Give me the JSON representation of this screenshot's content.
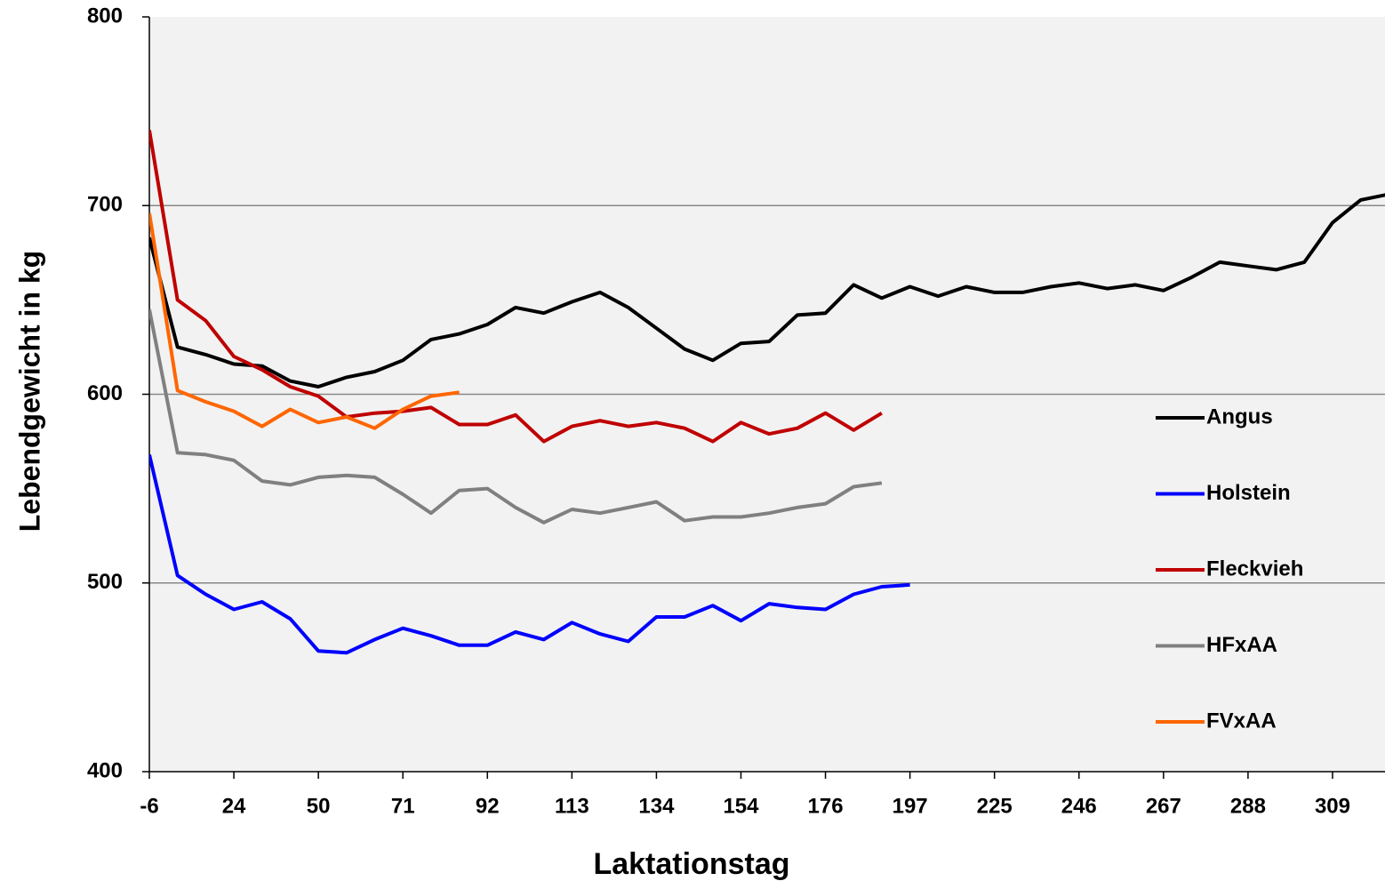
{
  "chart_data": {
    "type": "line",
    "xlabel": "Laktationstag",
    "ylabel": "Lebendgewicht in kg",
    "categories": [
      "-6",
      null,
      null,
      "24",
      null,
      null,
      "50",
      null,
      null,
      "71",
      null,
      null,
      "92",
      null,
      null,
      "113",
      null,
      null,
      "134",
      null,
      null,
      "154",
      null,
      null,
      "176",
      null,
      null,
      "197",
      null,
      null,
      "225",
      null,
      null,
      "246",
      null,
      null,
      "267",
      null,
      null,
      "288",
      null,
      null,
      "309",
      null,
      null
    ],
    "ylim": [
      400,
      800
    ],
    "yticks": [
      400,
      500,
      600,
      700,
      800
    ],
    "grid": true,
    "series": [
      {
        "name": "Angus",
        "color": "#000000",
        "values": [
          683,
          625,
          621,
          616,
          615,
          607,
          604,
          609,
          612,
          618,
          629,
          632,
          637,
          646,
          643,
          649,
          654,
          646,
          635,
          624,
          618,
          627,
          628,
          642,
          643,
          658,
          651,
          657,
          652,
          657,
          654,
          654,
          657,
          659,
          656,
          658,
          655,
          662,
          670,
          668,
          666,
          670,
          691,
          703,
          706
        ]
      },
      {
        "name": "Holstein",
        "color": "#0000ff",
        "values": [
          568,
          504,
          494,
          486,
          490,
          481,
          464,
          463,
          470,
          476,
          472,
          467,
          467,
          474,
          470,
          479,
          473,
          469,
          482,
          482,
          488,
          480,
          489,
          487,
          486,
          494,
          498,
          499,
          null,
          null,
          null,
          null,
          null,
          null,
          null,
          null,
          null,
          null,
          null,
          null,
          null,
          null,
          null,
          null,
          null
        ]
      },
      {
        "name": "Fleckvieh",
        "color": "#c00000",
        "values": [
          740,
          650,
          639,
          620,
          613,
          604,
          599,
          588,
          590,
          591,
          593,
          584,
          584,
          589,
          575,
          583,
          586,
          583,
          585,
          582,
          575,
          585,
          579,
          582,
          590,
          581,
          590,
          null,
          null,
          null,
          null,
          null,
          null,
          null,
          null,
          null,
          null,
          null,
          null,
          null,
          null,
          null,
          null,
          null,
          null
        ]
      },
      {
        "name": "HFxAA",
        "color": "#808080",
        "values": [
          645,
          569,
          568,
          565,
          554,
          552,
          556,
          557,
          556,
          547,
          537,
          549,
          550,
          540,
          532,
          539,
          537,
          540,
          543,
          533,
          535,
          535,
          537,
          540,
          542,
          551,
          553,
          null,
          null,
          null,
          null,
          null,
          null,
          null,
          null,
          null,
          null,
          null,
          null,
          null,
          null,
          null,
          null,
          null,
          null
        ]
      },
      {
        "name": "FVxAA",
        "color": "#ff6600",
        "values": [
          696,
          602,
          596,
          591,
          583,
          592,
          585,
          588,
          582,
          592,
          599,
          601,
          null,
          null,
          null,
          null,
          null,
          null,
          null,
          null,
          null,
          null,
          null,
          null,
          null,
          null,
          null,
          null,
          null,
          null,
          null,
          null,
          null,
          null,
          null,
          null,
          null,
          null,
          null,
          null,
          null,
          null,
          null,
          null,
          null
        ]
      }
    ]
  }
}
